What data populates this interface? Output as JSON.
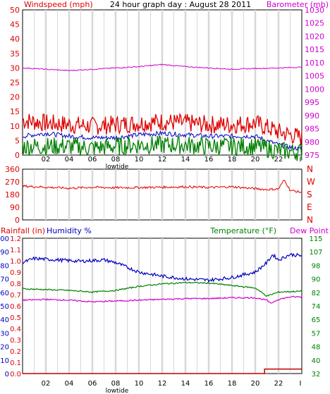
{
  "chart_data": [
    {
      "type": "line",
      "title": "24 hour graph day : August 28 2011",
      "left_label": "Windspeed (mph)",
      "right_label": "Barometer (mb)",
      "left_ticks": [
        "0",
        "5",
        "10",
        "15",
        "20",
        "25",
        "30",
        "35",
        "40",
        "45",
        "50"
      ],
      "right_ticks": [
        "975",
        "980",
        "985",
        "990",
        "995",
        "1000",
        "1005",
        "1010",
        "1015",
        "1020",
        "1025",
        "1030"
      ],
      "ylim_left": [
        0,
        50
      ],
      "ylim_right": [
        975,
        1030
      ],
      "x_ticks": [
        "02",
        "04",
        "06",
        "08",
        "10",
        "12",
        "14",
        "16",
        "18",
        "20",
        "22",
        "I"
      ],
      "x_annotation": "lowtide",
      "grid": true,
      "series": [
        {
          "color": "#e00000",
          "axis": "left",
          "band": [
            9,
            13
          ],
          "points": [
            [
              0,
              12
            ],
            [
              2,
              11
            ],
            [
              4,
              10.5
            ],
            [
              6,
              10
            ],
            [
              8,
              10.5
            ],
            [
              10,
              11
            ],
            [
              12,
              11.5
            ],
            [
              14,
              11
            ],
            [
              16,
              10.5
            ],
            [
              18,
              10.5
            ],
            [
              20,
              11
            ],
            [
              22,
              8
            ],
            [
              24,
              6
            ]
          ]
        },
        {
          "color": "#0000c0",
          "axis": "left",
          "points": [
            [
              0,
              6.5
            ],
            [
              2,
              7.5
            ],
            [
              4,
              6.5
            ],
            [
              6,
              6
            ],
            [
              8,
              6
            ],
            [
              10,
              7
            ],
            [
              12,
              7.5
            ],
            [
              14,
              7
            ],
            [
              16,
              6.5
            ],
            [
              18,
              6.5
            ],
            [
              20,
              6.5
            ],
            [
              22,
              3.5
            ],
            [
              24,
              2
            ]
          ]
        },
        {
          "color": "#008000",
          "axis": "left",
          "band": [
            1,
            5
          ],
          "points": [
            [
              0,
              3
            ],
            [
              2,
              3
            ],
            [
              4,
              3
            ],
            [
              6,
              2.5
            ],
            [
              8,
              3
            ],
            [
              10,
              3.5
            ],
            [
              12,
              3.5
            ],
            [
              14,
              3.5
            ],
            [
              16,
              3
            ],
            [
              18,
              3
            ],
            [
              20,
              3
            ],
            [
              22,
              1.5
            ],
            [
              24,
              1
            ]
          ]
        },
        {
          "color": "#d000d0",
          "axis": "right",
          "points": [
            [
              0,
              1008
            ],
            [
              2,
              1007.5
            ],
            [
              4,
              1007
            ],
            [
              6,
              1007.5
            ],
            [
              8,
              1008
            ],
            [
              10,
              1008.5
            ],
            [
              12,
              1009.3
            ],
            [
              14,
              1008.5
            ],
            [
              16,
              1008
            ],
            [
              18,
              1007.5
            ],
            [
              20,
              1007.8
            ],
            [
              22,
              1008
            ],
            [
              24,
              1008.3
            ]
          ]
        }
      ]
    },
    {
      "type": "line",
      "left_ticks": [
        "0",
        "90",
        "180",
        "270",
        "360"
      ],
      "right_labels": [
        "N",
        "W",
        "S",
        "E",
        "N"
      ],
      "ylim": [
        0,
        360
      ],
      "grid": true,
      "series": [
        {
          "color": "#e00000",
          "points": [
            [
              0,
              240
            ],
            [
              2,
              232
            ],
            [
              4,
              225
            ],
            [
              6,
              232
            ],
            [
              8,
              228
            ],
            [
              10,
              230
            ],
            [
              12,
              232
            ],
            [
              14,
              235
            ],
            [
              16,
              230
            ],
            [
              18,
              235
            ],
            [
              20,
              222
            ],
            [
              21,
              215
            ],
            [
              22,
              220
            ],
            [
              22.5,
              285
            ],
            [
              23,
              210
            ],
            [
              24,
              195
            ]
          ]
        }
      ]
    },
    {
      "type": "line",
      "left_label_rain": "Rainfall (in)",
      "left_label_humidity": "Humidity %",
      "right_label_temp": "Temperature (°F)",
      "right_label_dew": "Dew Point",
      "rain_ticks": [
        "0.0",
        "0.1",
        "0.2",
        "0.3",
        "0.4",
        "0.5",
        "0.6",
        "0.7",
        "0.8",
        "0.9",
        "1.0",
        "1.1",
        "1.2"
      ],
      "humidity_ticks": [
        "0",
        "10",
        "20",
        "30",
        "40",
        "50",
        "60",
        "70",
        "80",
        "90",
        "100"
      ],
      "temp_ticks": [
        "32",
        "40",
        "48",
        "57",
        "65",
        "74",
        "82",
        "90",
        "98",
        "107",
        "115"
      ],
      "ylim_humidity": [
        0,
        100
      ],
      "ylim_temp": [
        32,
        115
      ],
      "x_ticks": [
        "02",
        "04",
        "06",
        "08",
        "10",
        "12",
        "14",
        "16",
        "18",
        "20",
        "22",
        "I"
      ],
      "x_annotation": "lowtide",
      "grid": true,
      "series": [
        {
          "color": "#0000c0",
          "axis": "humidity",
          "points": [
            [
              0,
              82
            ],
            [
              1,
              85
            ],
            [
              3,
              84
            ],
            [
              5,
              83
            ],
            [
              7,
              84
            ],
            [
              8,
              82
            ],
            [
              10,
              75
            ],
            [
              12,
              72
            ],
            [
              14,
              70
            ],
            [
              16,
              69
            ],
            [
              18,
              71
            ],
            [
              20,
              75
            ],
            [
              21,
              82
            ],
            [
              21.5,
              88
            ],
            [
              22,
              84
            ],
            [
              23,
              88
            ],
            [
              24,
              87
            ]
          ]
        },
        {
          "color": "#008000",
          "axis": "temp",
          "points": [
            [
              0,
              84
            ],
            [
              2,
              83.5
            ],
            [
              4,
              83
            ],
            [
              6,
              82
            ],
            [
              8,
              83
            ],
            [
              10,
              85.5
            ],
            [
              12,
              87
            ],
            [
              14,
              87.8
            ],
            [
              16,
              87.5
            ],
            [
              18,
              86
            ],
            [
              20,
              84.5
            ],
            [
              21,
              79.5
            ],
            [
              22,
              82
            ],
            [
              24,
              82.5
            ]
          ]
        },
        {
          "color": "#d000d0",
          "axis": "temp",
          "points": [
            [
              0,
              77
            ],
            [
              2,
              77.5
            ],
            [
              4,
              77
            ],
            [
              6,
              76
            ],
            [
              8,
              76.5
            ],
            [
              10,
              77
            ],
            [
              12,
              77.5
            ],
            [
              14,
              78
            ],
            [
              16,
              78
            ],
            [
              18,
              78.5
            ],
            [
              20,
              78.5
            ],
            [
              21,
              77
            ],
            [
              21.3,
              75
            ],
            [
              22,
              77.5
            ],
            [
              23,
              79
            ],
            [
              24,
              79
            ]
          ]
        },
        {
          "color": "#c00000",
          "axis": "rain",
          "step": true,
          "points": [
            [
              0,
              0
            ],
            [
              20.8,
              0
            ],
            [
              20.8,
              0.04
            ],
            [
              24,
              0.04
            ]
          ]
        }
      ]
    }
  ]
}
